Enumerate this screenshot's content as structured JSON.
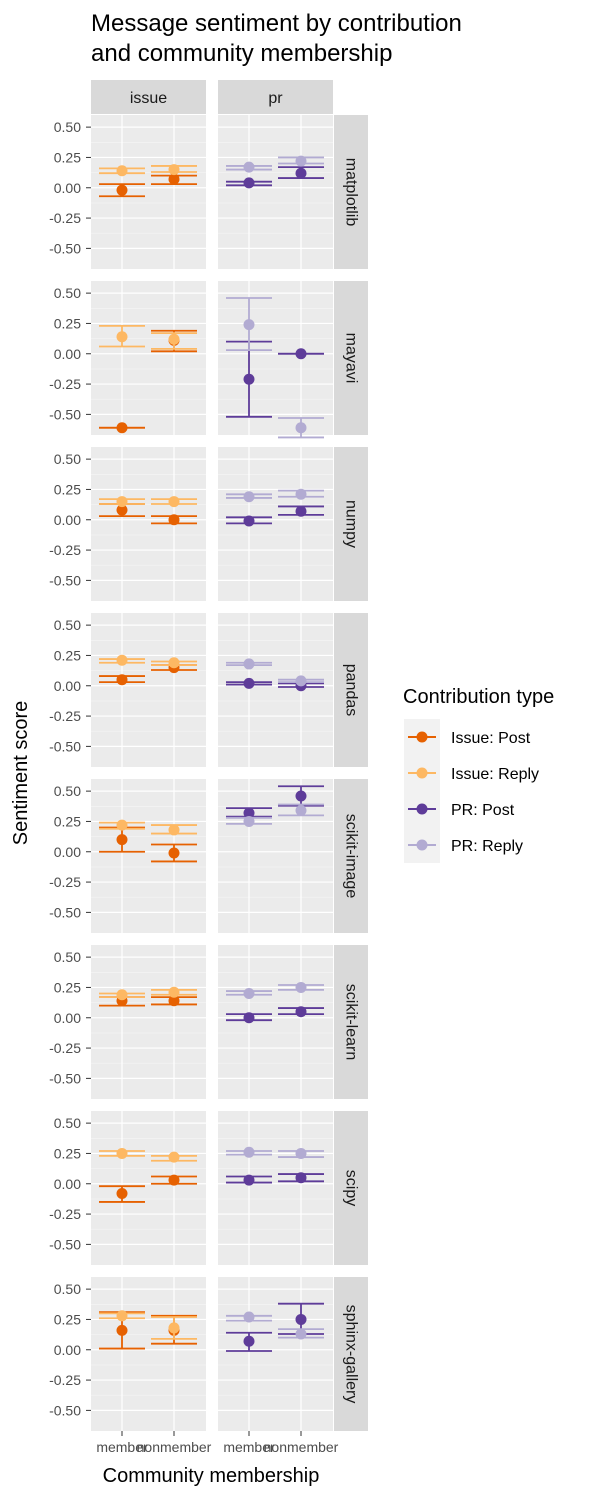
{
  "chart_data": {
    "type": "point-errorbar-facet",
    "title_lines": [
      "Message sentiment by contribution",
      "and community membership"
    ],
    "xlabel": "Community membership",
    "ylabel": "Sentiment score",
    "legend_title": "Contribution type",
    "legend_placement": "right",
    "categories": [
      "member",
      "nonmember"
    ],
    "category_labels": [
      "member",
      "nonmember"
    ],
    "columns": [
      "issue",
      "pr"
    ],
    "rows": [
      "matplotlib",
      "mayavi",
      "numpy",
      "pandas",
      "scikit-image",
      "scikit-learn",
      "scipy",
      "sphinx-gallery"
    ],
    "y_ticks": [
      0.5,
      0.25,
      0,
      -0.25,
      -0.5
    ],
    "y_tick_labels": [
      "0.50",
      "0.25",
      "0.00",
      "-0.25",
      "-0.50"
    ],
    "ylim": [
      -0.67,
      0.6
    ],
    "series": [
      {
        "name": "Issue: Post",
        "color": "#E66101"
      },
      {
        "name": "Issue: Reply",
        "color": "#FDB863"
      },
      {
        "name": "PR: Post",
        "color": "#5E3C99"
      },
      {
        "name": "PR: Reply",
        "color": "#B2ABD2"
      }
    ],
    "panels": {
      "matplotlib": {
        "issue": [
          {
            "series": "Issue: Post",
            "member": [
              -0.02,
              -0.07,
              0.03
            ],
            "nonmember": [
              0.07,
              0.03,
              0.1
            ]
          },
          {
            "series": "Issue: Reply",
            "member": [
              0.14,
              0.12,
              0.16
            ],
            "nonmember": [
              0.15,
              0.13,
              0.18
            ]
          }
        ],
        "pr": [
          {
            "series": "PR: Post",
            "member": [
              0.04,
              0.02,
              0.05
            ],
            "nonmember": [
              0.12,
              0.08,
              0.17
            ]
          },
          {
            "series": "PR: Reply",
            "member": [
              0.17,
              0.15,
              0.18
            ],
            "nonmember": [
              0.22,
              0.2,
              0.25
            ]
          }
        ]
      },
      "mayavi": {
        "issue": [
          {
            "series": "Issue: Post",
            "member": [
              -0.61,
              -0.61,
              -0.61
            ],
            "nonmember": [
              0.11,
              0.02,
              0.19
            ]
          },
          {
            "series": "Issue: Reply",
            "member": [
              0.14,
              0.06,
              0.23
            ],
            "nonmember": [
              0.12,
              0.04,
              0.17
            ]
          }
        ],
        "pr": [
          {
            "series": "PR: Post",
            "member": [
              -0.21,
              -0.52,
              0.1
            ],
            "nonmember": [
              0.0,
              0.0,
              0.0
            ]
          },
          {
            "series": "PR: Reply",
            "member": [
              0.24,
              0.03,
              0.46
            ],
            "nonmember": [
              -0.61,
              -0.69,
              -0.53
            ]
          }
        ]
      },
      "numpy": {
        "issue": [
          {
            "series": "Issue: Post",
            "member": [
              0.08,
              0.03,
              0.13
            ],
            "nonmember": [
              0.0,
              -0.03,
              0.03
            ]
          },
          {
            "series": "Issue: Reply",
            "member": [
              0.15,
              0.13,
              0.17
            ],
            "nonmember": [
              0.15,
              0.13,
              0.17
            ]
          }
        ],
        "pr": [
          {
            "series": "PR: Post",
            "member": [
              -0.01,
              -0.03,
              0.02
            ],
            "nonmember": [
              0.07,
              0.04,
              0.11
            ]
          },
          {
            "series": "PR: Reply",
            "member": [
              0.19,
              0.18,
              0.21
            ],
            "nonmember": [
              0.21,
              0.19,
              0.24
            ]
          }
        ]
      },
      "pandas": {
        "issue": [
          {
            "series": "Issue: Post",
            "member": [
              0.05,
              0.03,
              0.08
            ],
            "nonmember": [
              0.15,
              0.13,
              0.17
            ]
          },
          {
            "series": "Issue: Reply",
            "member": [
              0.21,
              0.19,
              0.22
            ],
            "nonmember": [
              0.19,
              0.17,
              0.2
            ]
          }
        ],
        "pr": [
          {
            "series": "PR: Post",
            "member": [
              0.02,
              0.01,
              0.03
            ],
            "nonmember": [
              0.0,
              -0.01,
              0.02
            ]
          },
          {
            "series": "PR: Reply",
            "member": [
              0.18,
              0.17,
              0.19
            ],
            "nonmember": [
              0.04,
              0.03,
              0.05
            ]
          }
        ]
      },
      "scikit-image": {
        "issue": [
          {
            "series": "Issue: Post",
            "member": [
              0.1,
              0.0,
              0.2
            ],
            "nonmember": [
              -0.01,
              -0.08,
              0.06
            ]
          },
          {
            "series": "Issue: Reply",
            "member": [
              0.22,
              0.19,
              0.24
            ],
            "nonmember": [
              0.18,
              0.15,
              0.22
            ]
          }
        ],
        "pr": [
          {
            "series": "PR: Post",
            "member": [
              0.32,
              0.29,
              0.36
            ],
            "nonmember": [
              0.46,
              0.38,
              0.54
            ]
          },
          {
            "series": "PR: Reply",
            "member": [
              0.25,
              0.23,
              0.28
            ],
            "nonmember": [
              0.34,
              0.3,
              0.39
            ]
          }
        ]
      },
      "scikit-learn": {
        "issue": [
          {
            "series": "Issue: Post",
            "member": [
              0.14,
              0.1,
              0.17
            ],
            "nonmember": [
              0.14,
              0.11,
              0.17
            ]
          },
          {
            "series": "Issue: Reply",
            "member": [
              0.19,
              0.17,
              0.2
            ],
            "nonmember": [
              0.21,
              0.19,
              0.23
            ]
          }
        ],
        "pr": [
          {
            "series": "PR: Post",
            "member": [
              0.0,
              -0.02,
              0.03
            ],
            "nonmember": [
              0.05,
              0.03,
              0.08
            ]
          },
          {
            "series": "PR: Reply",
            "member": [
              0.2,
              0.19,
              0.22
            ],
            "nonmember": [
              0.25,
              0.23,
              0.27
            ]
          }
        ]
      },
      "scipy": {
        "issue": [
          {
            "series": "Issue: Post",
            "member": [
              -0.08,
              -0.15,
              -0.02
            ],
            "nonmember": [
              0.03,
              0.0,
              0.06
            ]
          },
          {
            "series": "Issue: Reply",
            "member": [
              0.25,
              0.23,
              0.27
            ],
            "nonmember": [
              0.22,
              0.19,
              0.23
            ]
          }
        ],
        "pr": [
          {
            "series": "PR: Post",
            "member": [
              0.03,
              0.01,
              0.06
            ],
            "nonmember": [
              0.05,
              0.02,
              0.08
            ]
          },
          {
            "series": "PR: Reply",
            "member": [
              0.26,
              0.24,
              0.27
            ],
            "nonmember": [
              0.25,
              0.22,
              0.27
            ]
          }
        ]
      },
      "sphinx-gallery": {
        "issue": [
          {
            "series": "Issue: Post",
            "member": [
              0.16,
              0.01,
              0.31
            ],
            "nonmember": [
              0.16,
              0.05,
              0.28
            ]
          },
          {
            "series": "Issue: Reply",
            "member": [
              0.28,
              0.26,
              0.3
            ],
            "nonmember": [
              0.18,
              0.09,
              0.27
            ]
          }
        ],
        "pr": [
          {
            "series": "PR: Post",
            "member": [
              0.07,
              -0.01,
              0.14
            ],
            "nonmember": [
              0.25,
              0.13,
              0.38
            ]
          },
          {
            "series": "PR: Reply",
            "member": [
              0.27,
              0.24,
              0.28
            ],
            "nonmember": [
              0.13,
              0.1,
              0.17
            ]
          }
        ]
      }
    }
  }
}
